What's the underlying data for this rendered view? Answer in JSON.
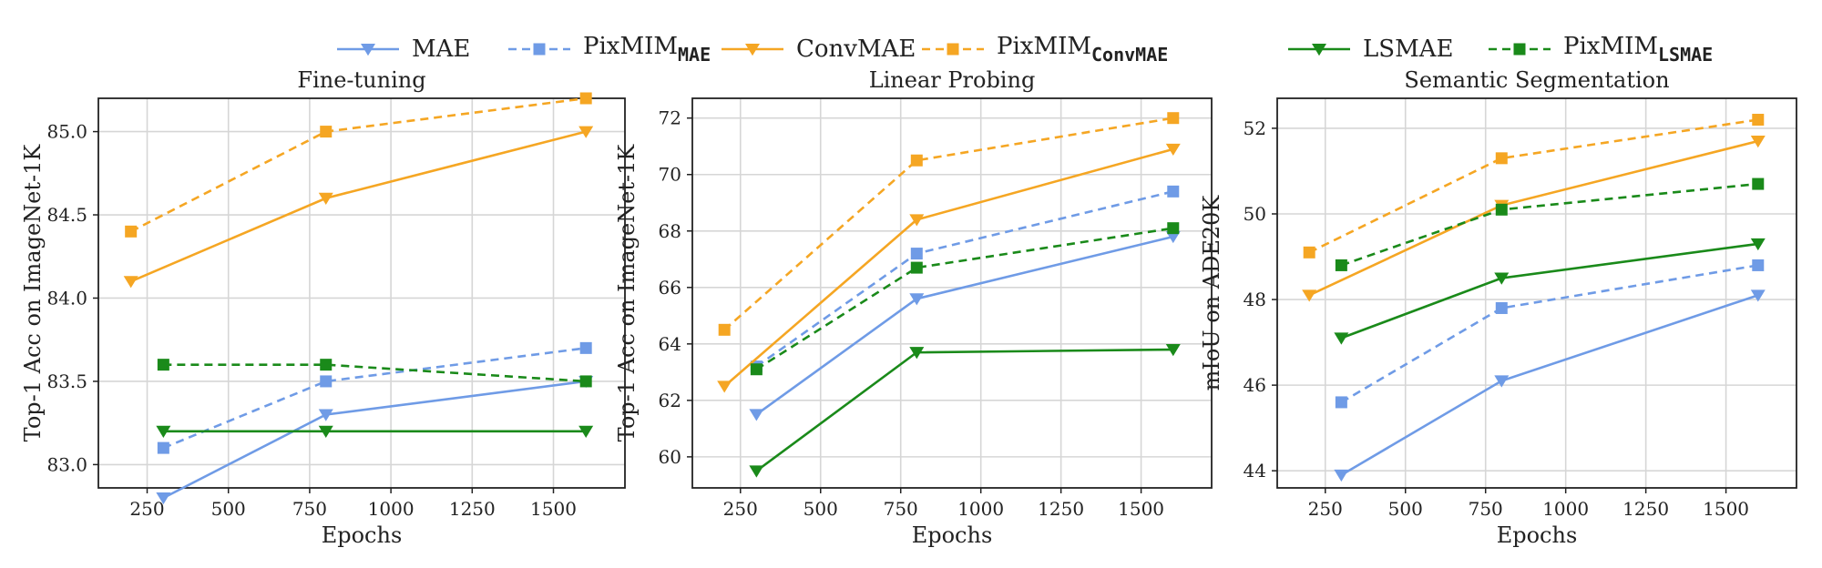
{
  "legend": {
    "entries": [
      {
        "id": "mae",
        "label": "MAE",
        "sub": "",
        "color": "#6f9be6",
        "dash": false,
        "marker": "triangle-down"
      },
      {
        "id": "pixmim_mae",
        "label": "PixMIM",
        "sub": "MAE",
        "color": "#6f9be6",
        "dash": true,
        "marker": "square"
      },
      {
        "id": "convmae",
        "label": "ConvMAE",
        "sub": "",
        "color": "#f5a623",
        "dash": false,
        "marker": "triangle-down"
      },
      {
        "id": "pixmim_convmae",
        "label": "PixMIM",
        "sub": "ConvMAE",
        "color": "#f5a623",
        "dash": true,
        "marker": "square"
      },
      {
        "id": "lsmae",
        "label": "LSMAE",
        "sub": "",
        "color": "#1a8a1a",
        "dash": false,
        "marker": "triangle-down"
      },
      {
        "id": "pixmim_lsmae",
        "label": "PixMIM",
        "sub": "LSMAE",
        "color": "#1a8a1a",
        "dash": true,
        "marker": "square"
      }
    ]
  },
  "chart_data": [
    {
      "type": "line",
      "title": "Fine-tuning",
      "xlabel": "Epochs",
      "ylabel": "Top-1 Acc on ImageNet-1K",
      "xlim": [
        100,
        1720
      ],
      "ylim": [
        82.86,
        85.2
      ],
      "xticks": [
        250,
        500,
        750,
        1000,
        1250,
        1500
      ],
      "yticks": [
        83.0,
        83.5,
        84.0,
        84.5,
        85.0
      ],
      "ytick_labels": [
        "83.0",
        "83.5",
        "84.0",
        "84.5",
        "85.0"
      ],
      "grid": true,
      "series": [
        {
          "key": "mae",
          "x": [
            300,
            800,
            1600
          ],
          "y": [
            82.8,
            83.3,
            83.5
          ]
        },
        {
          "key": "pixmim_mae",
          "x": [
            300,
            800,
            1600
          ],
          "y": [
            83.1,
            83.5,
            83.7
          ]
        },
        {
          "key": "convmae",
          "x": [
            200,
            800,
            1600
          ],
          "y": [
            84.1,
            84.6,
            85.0
          ]
        },
        {
          "key": "pixmim_convmae",
          "x": [
            200,
            800,
            1600
          ],
          "y": [
            84.4,
            85.0,
            85.2
          ]
        },
        {
          "key": "lsmae",
          "x": [
            300,
            800,
            1600
          ],
          "y": [
            83.2,
            83.2,
            83.2
          ]
        },
        {
          "key": "pixmim_lsmae",
          "x": [
            300,
            800,
            1600
          ],
          "y": [
            83.6,
            83.6,
            83.5
          ]
        }
      ]
    },
    {
      "type": "line",
      "title": "Linear Probing",
      "xlabel": "Epochs",
      "ylabel": "Top-1 Acc on ImageNet-1K",
      "xlim": [
        100,
        1720
      ],
      "ylim": [
        58.9,
        72.7
      ],
      "xticks": [
        250,
        500,
        750,
        1000,
        1250,
        1500
      ],
      "yticks": [
        60,
        62,
        64,
        66,
        68,
        70,
        72
      ],
      "ytick_labels": [
        "60",
        "62",
        "64",
        "66",
        "68",
        "70",
        "72"
      ],
      "grid": true,
      "series": [
        {
          "key": "mae",
          "x": [
            300,
            800,
            1600
          ],
          "y": [
            61.5,
            65.6,
            67.8
          ]
        },
        {
          "key": "pixmim_mae",
          "x": [
            300,
            800,
            1600
          ],
          "y": [
            63.2,
            67.2,
            69.4
          ]
        },
        {
          "key": "convmae",
          "x": [
            200,
            800,
            1600
          ],
          "y": [
            62.5,
            68.4,
            70.9
          ]
        },
        {
          "key": "pixmim_convmae",
          "x": [
            200,
            800,
            1600
          ],
          "y": [
            64.5,
            70.5,
            72.0
          ]
        },
        {
          "key": "lsmae",
          "x": [
            300,
            800,
            1600
          ],
          "y": [
            59.5,
            63.7,
            63.8
          ]
        },
        {
          "key": "pixmim_lsmae",
          "x": [
            300,
            800,
            1600
          ],
          "y": [
            63.1,
            66.7,
            68.1
          ]
        }
      ]
    },
    {
      "type": "line",
      "title": "Semantic Segmentation",
      "xlabel": "Epochs",
      "ylabel": "mIoU on ADE20K",
      "xlim": [
        100,
        1720
      ],
      "ylim": [
        43.6,
        52.7
      ],
      "xticks": [
        250,
        500,
        750,
        1000,
        1250,
        1500
      ],
      "yticks": [
        44,
        46,
        48,
        50,
        52
      ],
      "ytick_labels": [
        "44",
        "46",
        "48",
        "50",
        "52"
      ],
      "grid": true,
      "series": [
        {
          "key": "mae",
          "x": [
            300,
            800,
            1600
          ],
          "y": [
            43.9,
            46.1,
            48.1
          ]
        },
        {
          "key": "pixmim_mae",
          "x": [
            300,
            800,
            1600
          ],
          "y": [
            45.6,
            47.8,
            48.8
          ]
        },
        {
          "key": "convmae",
          "x": [
            200,
            800,
            1600
          ],
          "y": [
            48.1,
            50.2,
            51.7
          ]
        },
        {
          "key": "pixmim_convmae",
          "x": [
            200,
            800,
            1600
          ],
          "y": [
            49.1,
            51.3,
            52.2
          ]
        },
        {
          "key": "lsmae",
          "x": [
            300,
            800,
            1600
          ],
          "y": [
            47.1,
            48.5,
            49.3
          ]
        },
        {
          "key": "pixmim_lsmae",
          "x": [
            300,
            800,
            1600
          ],
          "y": [
            48.8,
            50.1,
            50.7
          ]
        }
      ]
    }
  ]
}
